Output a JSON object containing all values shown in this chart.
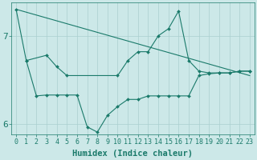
{
  "xlabel": "Humidex (Indice chaleur)",
  "background_color": "#cce8e8",
  "line_color": "#1a7a6a",
  "grid_color": "#aacfcf",
  "ylim": [
    5.88,
    7.38
  ],
  "xlim": [
    -0.5,
    23.5
  ],
  "yticks": [
    6,
    7
  ],
  "xticks": [
    0,
    1,
    2,
    3,
    4,
    5,
    6,
    7,
    8,
    9,
    10,
    11,
    12,
    13,
    14,
    15,
    16,
    17,
    18,
    19,
    20,
    21,
    22,
    23
  ],
  "line1_x": [
    0,
    1,
    3,
    4,
    5,
    10,
    11,
    12,
    13,
    14,
    15,
    16,
    17,
    18,
    19,
    20,
    21,
    22,
    23
  ],
  "line1_y": [
    7.3,
    6.72,
    6.78,
    6.65,
    6.55,
    6.55,
    6.72,
    6.82,
    6.82,
    7.0,
    7.08,
    7.28,
    6.72,
    6.6,
    6.58,
    6.58,
    6.58,
    6.6,
    6.6
  ],
  "line2_x": [
    0,
    23
  ],
  "line2_y": [
    7.3,
    6.55
  ],
  "line3_x": [
    1,
    2,
    3,
    4,
    5,
    6,
    7,
    8,
    9,
    10,
    11,
    12,
    13,
    14,
    15,
    16,
    17,
    18,
    19,
    20,
    21,
    22,
    23
  ],
  "line3_y": [
    6.72,
    6.32,
    6.33,
    6.33,
    6.33,
    6.33,
    5.97,
    5.91,
    6.1,
    6.2,
    6.28,
    6.28,
    6.32,
    6.32,
    6.32,
    6.32,
    6.32,
    6.55,
    6.57,
    6.58,
    6.58,
    6.6,
    6.6
  ],
  "tick_fontsize": 6,
  "label_fontsize": 7.5
}
